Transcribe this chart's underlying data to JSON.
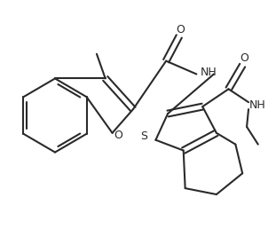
{
  "bg_color": "#ffffff",
  "line_color": "#2a2a2a",
  "line_width": 1.5,
  "figsize": [
    3.02,
    2.58
  ],
  "dpi": 100,
  "xlim": [
    0,
    302
  ],
  "ylim": [
    0,
    258
  ]
}
